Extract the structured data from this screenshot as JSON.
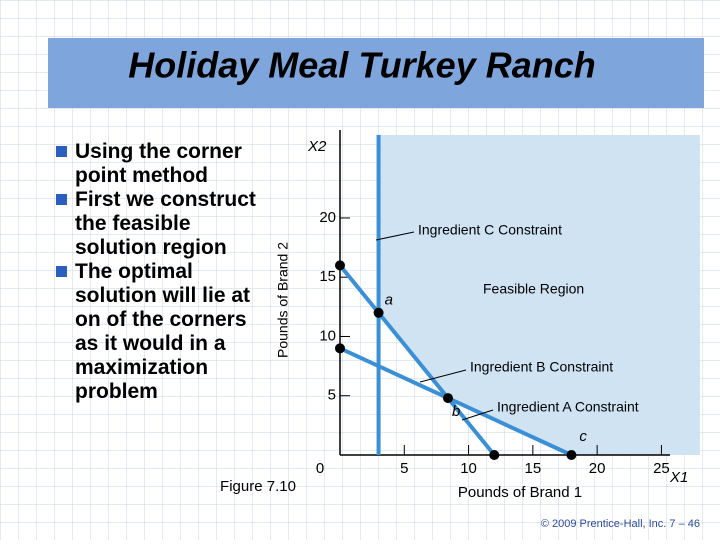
{
  "slide": {
    "title": "Holiday Meal Turkey Ranch",
    "bullets": [
      "Using the corner point method",
      "First we construct the feasible solution region",
      "The optimal solution will lie at on of the corners as it would in a maximization problem"
    ],
    "figure_caption": "Figure 7.10",
    "footer": "© 2009 Prentice-Hall, Inc.  7 – 46"
  },
  "figure": {
    "x_axis_label": "Pounds of Brand 1",
    "x_axis_symbol": "X1",
    "y_axis_label": "Pounds of Brand 2",
    "y_axis_symbol": "X2",
    "xlim": [
      0,
      28
    ],
    "ylim": [
      0,
      27
    ],
    "xticks": [
      0,
      5,
      10,
      15,
      20,
      25
    ],
    "yticks": [
      5,
      10,
      15,
      20
    ],
    "region_label": "Feasible Region",
    "constraints": [
      {
        "name": "Ingredient C Constraint",
        "x": [
          3,
          3
        ],
        "y": [
          0,
          27
        ]
      },
      {
        "name": "Ingredient B Constraint",
        "x": [
          0,
          12
        ],
        "y": [
          16,
          0
        ]
      },
      {
        "name": "Ingredient A Constraint",
        "x": [
          0,
          18
        ],
        "y": [
          9,
          0
        ]
      }
    ],
    "corners": [
      {
        "label": "a",
        "x": 3,
        "y": 12
      },
      {
        "label": "b",
        "x": 8.4,
        "y": 4.8
      },
      {
        "label": "c",
        "x": 18,
        "y": 0
      }
    ]
  }
}
